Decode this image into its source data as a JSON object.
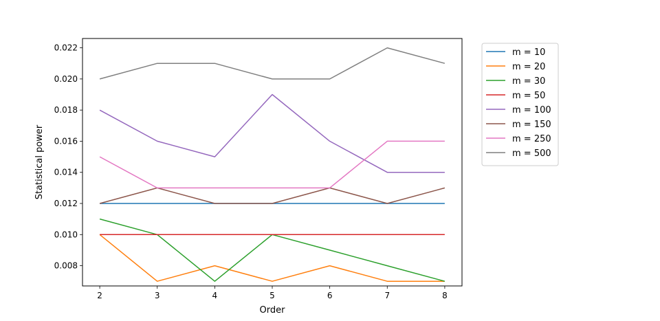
{
  "chart_data": {
    "type": "line",
    "title": "",
    "xlabel": "Order",
    "ylabel": "Statistical power",
    "x": [
      2,
      3,
      4,
      5,
      6,
      7,
      8
    ],
    "xlim": [
      1.7,
      8.3
    ],
    "ylim": [
      0.0067,
      0.0226
    ],
    "xticks": [
      2,
      3,
      4,
      5,
      6,
      7,
      8
    ],
    "yticks": [
      0.008,
      0.01,
      0.012,
      0.014,
      0.016,
      0.018,
      0.02,
      0.022
    ],
    "ytick_labels": [
      "0.008",
      "0.010",
      "0.012",
      "0.014",
      "0.016",
      "0.018",
      "0.020",
      "0.022"
    ],
    "grid": false,
    "legend_position": "outside-right-top",
    "series": [
      {
        "name": "m = 10",
        "color": "#1f77b4",
        "values": [
          0.012,
          0.012,
          0.012,
          0.012,
          0.012,
          0.012,
          0.012
        ]
      },
      {
        "name": "m = 20",
        "color": "#ff7f0e",
        "values": [
          0.01,
          0.007,
          0.008,
          0.007,
          0.008,
          0.007,
          0.007
        ]
      },
      {
        "name": "m = 30",
        "color": "#2ca02c",
        "values": [
          0.011,
          0.01,
          0.007,
          0.01,
          0.009,
          0.008,
          0.007
        ]
      },
      {
        "name": "m = 50",
        "color": "#d62728",
        "values": [
          0.01,
          0.01,
          0.01,
          0.01,
          0.01,
          0.01,
          0.01
        ]
      },
      {
        "name": "m = 100",
        "color": "#9467bd",
        "values": [
          0.018,
          0.016,
          0.015,
          0.019,
          0.016,
          0.014,
          0.014
        ]
      },
      {
        "name": "m = 150",
        "color": "#8c564b",
        "values": [
          0.012,
          0.013,
          0.012,
          0.012,
          0.013,
          0.012,
          0.013
        ]
      },
      {
        "name": "m = 250",
        "color": "#e377c2",
        "values": [
          0.015,
          0.013,
          0.013,
          0.013,
          0.013,
          0.016,
          0.016
        ]
      },
      {
        "name": "m = 500",
        "color": "#7f7f7f",
        "values": [
          0.02,
          0.021,
          0.021,
          0.02,
          0.02,
          0.022,
          0.021
        ]
      }
    ]
  }
}
